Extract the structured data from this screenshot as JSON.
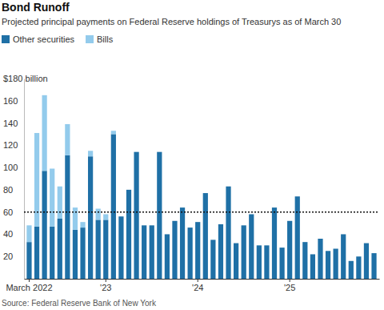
{
  "chart_data": {
    "type": "bar",
    "stacked": true,
    "title": "Bond Runoff",
    "subtitle": "Projected principal payments on Federal Reserve holdings of Treasurys as of March 30",
    "source": "Source: Federal Reserve Bank of New York",
    "legend": "top-left",
    "grid": false,
    "categories": [
      "March 2022",
      null,
      null,
      null,
      null,
      null,
      null,
      null,
      null,
      null,
      "'23",
      null,
      null,
      null,
      null,
      null,
      null,
      null,
      null,
      null,
      null,
      null,
      "'24",
      null,
      null,
      null,
      null,
      null,
      null,
      null,
      null,
      null,
      null,
      null,
      "'25",
      null,
      null,
      null,
      null,
      null,
      null,
      null,
      null,
      null,
      null,
      null
    ],
    "series": [
      {
        "name": "Other securities",
        "color": "#1f70a6",
        "values": [
          33,
          47,
          97,
          47,
          54,
          111,
          44,
          46,
          110,
          53,
          53,
          130,
          56,
          80,
          114,
          48,
          48,
          114,
          40,
          52,
          64,
          46,
          51,
          77,
          35,
          49,
          83,
          32,
          48,
          58,
          30,
          30,
          64,
          28,
          52,
          74,
          33,
          22,
          36,
          25,
          27,
          40,
          16,
          20,
          32,
          23
        ]
      },
      {
        "name": "Bills",
        "color": "#93cbec",
        "values": [
          15,
          84,
          68,
          52,
          29,
          28,
          20,
          5,
          5,
          10,
          5,
          3,
          null,
          null,
          null,
          null,
          null,
          null,
          null,
          null,
          null,
          null,
          null,
          null,
          null,
          null,
          null,
          null,
          null,
          null,
          null,
          null,
          null,
          null,
          null,
          null,
          null,
          null,
          null,
          null,
          null,
          null,
          null,
          null,
          null,
          null
        ]
      }
    ],
    "ylim": [
      0,
      180
    ],
    "yticks": [
      20,
      40,
      60,
      80,
      100,
      120,
      140,
      160,
      {
        "value": 180,
        "label": "$180 billion"
      }
    ],
    "reference_lines": [
      {
        "value": 60,
        "line_style": "dotted"
      }
    ]
  }
}
